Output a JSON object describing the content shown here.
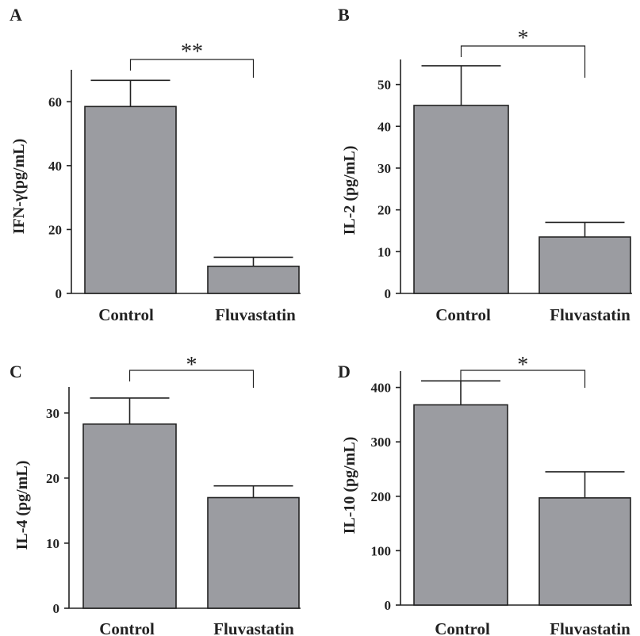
{
  "chart_data": [
    {
      "panel": "A",
      "type": "bar",
      "categories": [
        "Control",
        "Fluvastatin"
      ],
      "values": [
        58.5,
        8.5
      ],
      "errors": [
        8.2,
        2.8
      ],
      "ylabel": "IFN-γ(pg/mL)",
      "ylim": [
        0,
        70
      ],
      "yticks": [
        0,
        20,
        40,
        60
      ],
      "significance": "**",
      "bar_color": "#9b9ca1"
    },
    {
      "panel": "B",
      "type": "bar",
      "categories": [
        "Control",
        "Fluvastatin"
      ],
      "values": [
        45,
        13.5
      ],
      "errors": [
        9.5,
        3.5
      ],
      "ylabel": "IL-2 (pg/mL)",
      "ylim": [
        0,
        56
      ],
      "yticks": [
        0,
        10,
        20,
        30,
        40,
        50
      ],
      "significance": "*",
      "bar_color": "#9b9ca1"
    },
    {
      "panel": "C",
      "type": "bar",
      "categories": [
        "Control",
        "Fluvastatin"
      ],
      "values": [
        28.3,
        17
      ],
      "errors": [
        4,
        1.8
      ],
      "ylabel": "IL-4 (pg/mL)",
      "ylim": [
        0,
        34
      ],
      "yticks": [
        0,
        10,
        20,
        30
      ],
      "significance": "*",
      "bar_color": "#9b9ca1"
    },
    {
      "panel": "D",
      "type": "bar",
      "categories": [
        "Control",
        "Fluvastatin"
      ],
      "values": [
        368,
        197
      ],
      "errors": [
        44,
        48
      ],
      "ylabel": "IL-10 (pg/mL)",
      "ylim": [
        0,
        430
      ],
      "yticks": [
        0,
        100,
        200,
        300,
        400
      ],
      "significance": "*",
      "bar_color": "#9b9ca1"
    }
  ]
}
